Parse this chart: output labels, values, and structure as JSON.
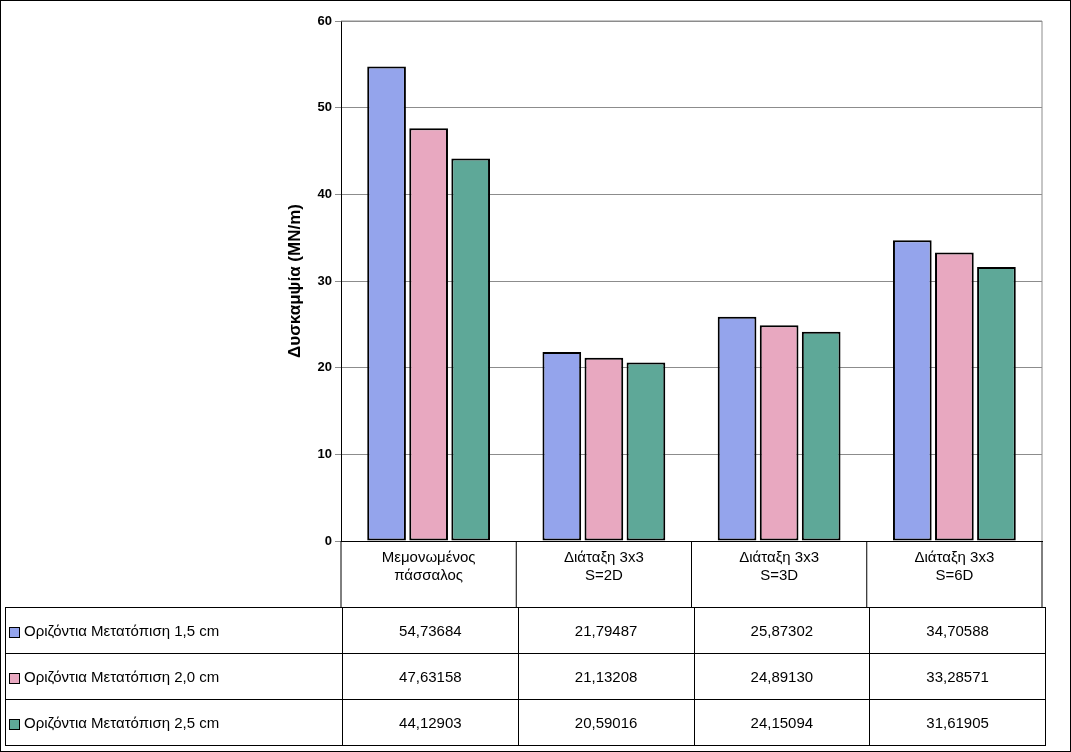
{
  "chart_data": {
    "type": "bar",
    "ylabel": "Δυσκαμψία (MN/m)",
    "categories": [
      "Μεμονωμένος πάσσαλος",
      "Διάταξη 3x3 S=2D",
      "Διάταξη 3x3 S=3D",
      "Διάταξη 3x3 S=6D"
    ],
    "series": [
      {
        "name": "Οριζόντια Μετατόπιση 1,5 cm",
        "color": "#94a4ec",
        "values": [
          54.73684,
          21.79487,
          25.87302,
          34.70588
        ],
        "value_labels": [
          "54,73684",
          "21,79487",
          "25,87302",
          "34,70588"
        ]
      },
      {
        "name": "Οριζόντια Μετατόπιση 2,0 cm",
        "color": "#e8a8c0",
        "values": [
          47.63158,
          21.13208,
          24.8913,
          33.28571
        ],
        "value_labels": [
          "47,63158",
          "21,13208",
          "24,89130",
          "33,28571"
        ]
      },
      {
        "name": "Οριζόντια Μετατόπιση 2,5 cm",
        "color": "#5ea898",
        "values": [
          44.12903,
          20.59016,
          24.15094,
          31.61905
        ],
        "value_labels": [
          "44,12903",
          "20,59016",
          "24,15094",
          "31,61905"
        ]
      }
    ],
    "ylim": [
      0,
      60
    ],
    "yticks": [
      0,
      10,
      20,
      30,
      40,
      50,
      60
    ],
    "grid": "y",
    "legend": "bottom"
  }
}
